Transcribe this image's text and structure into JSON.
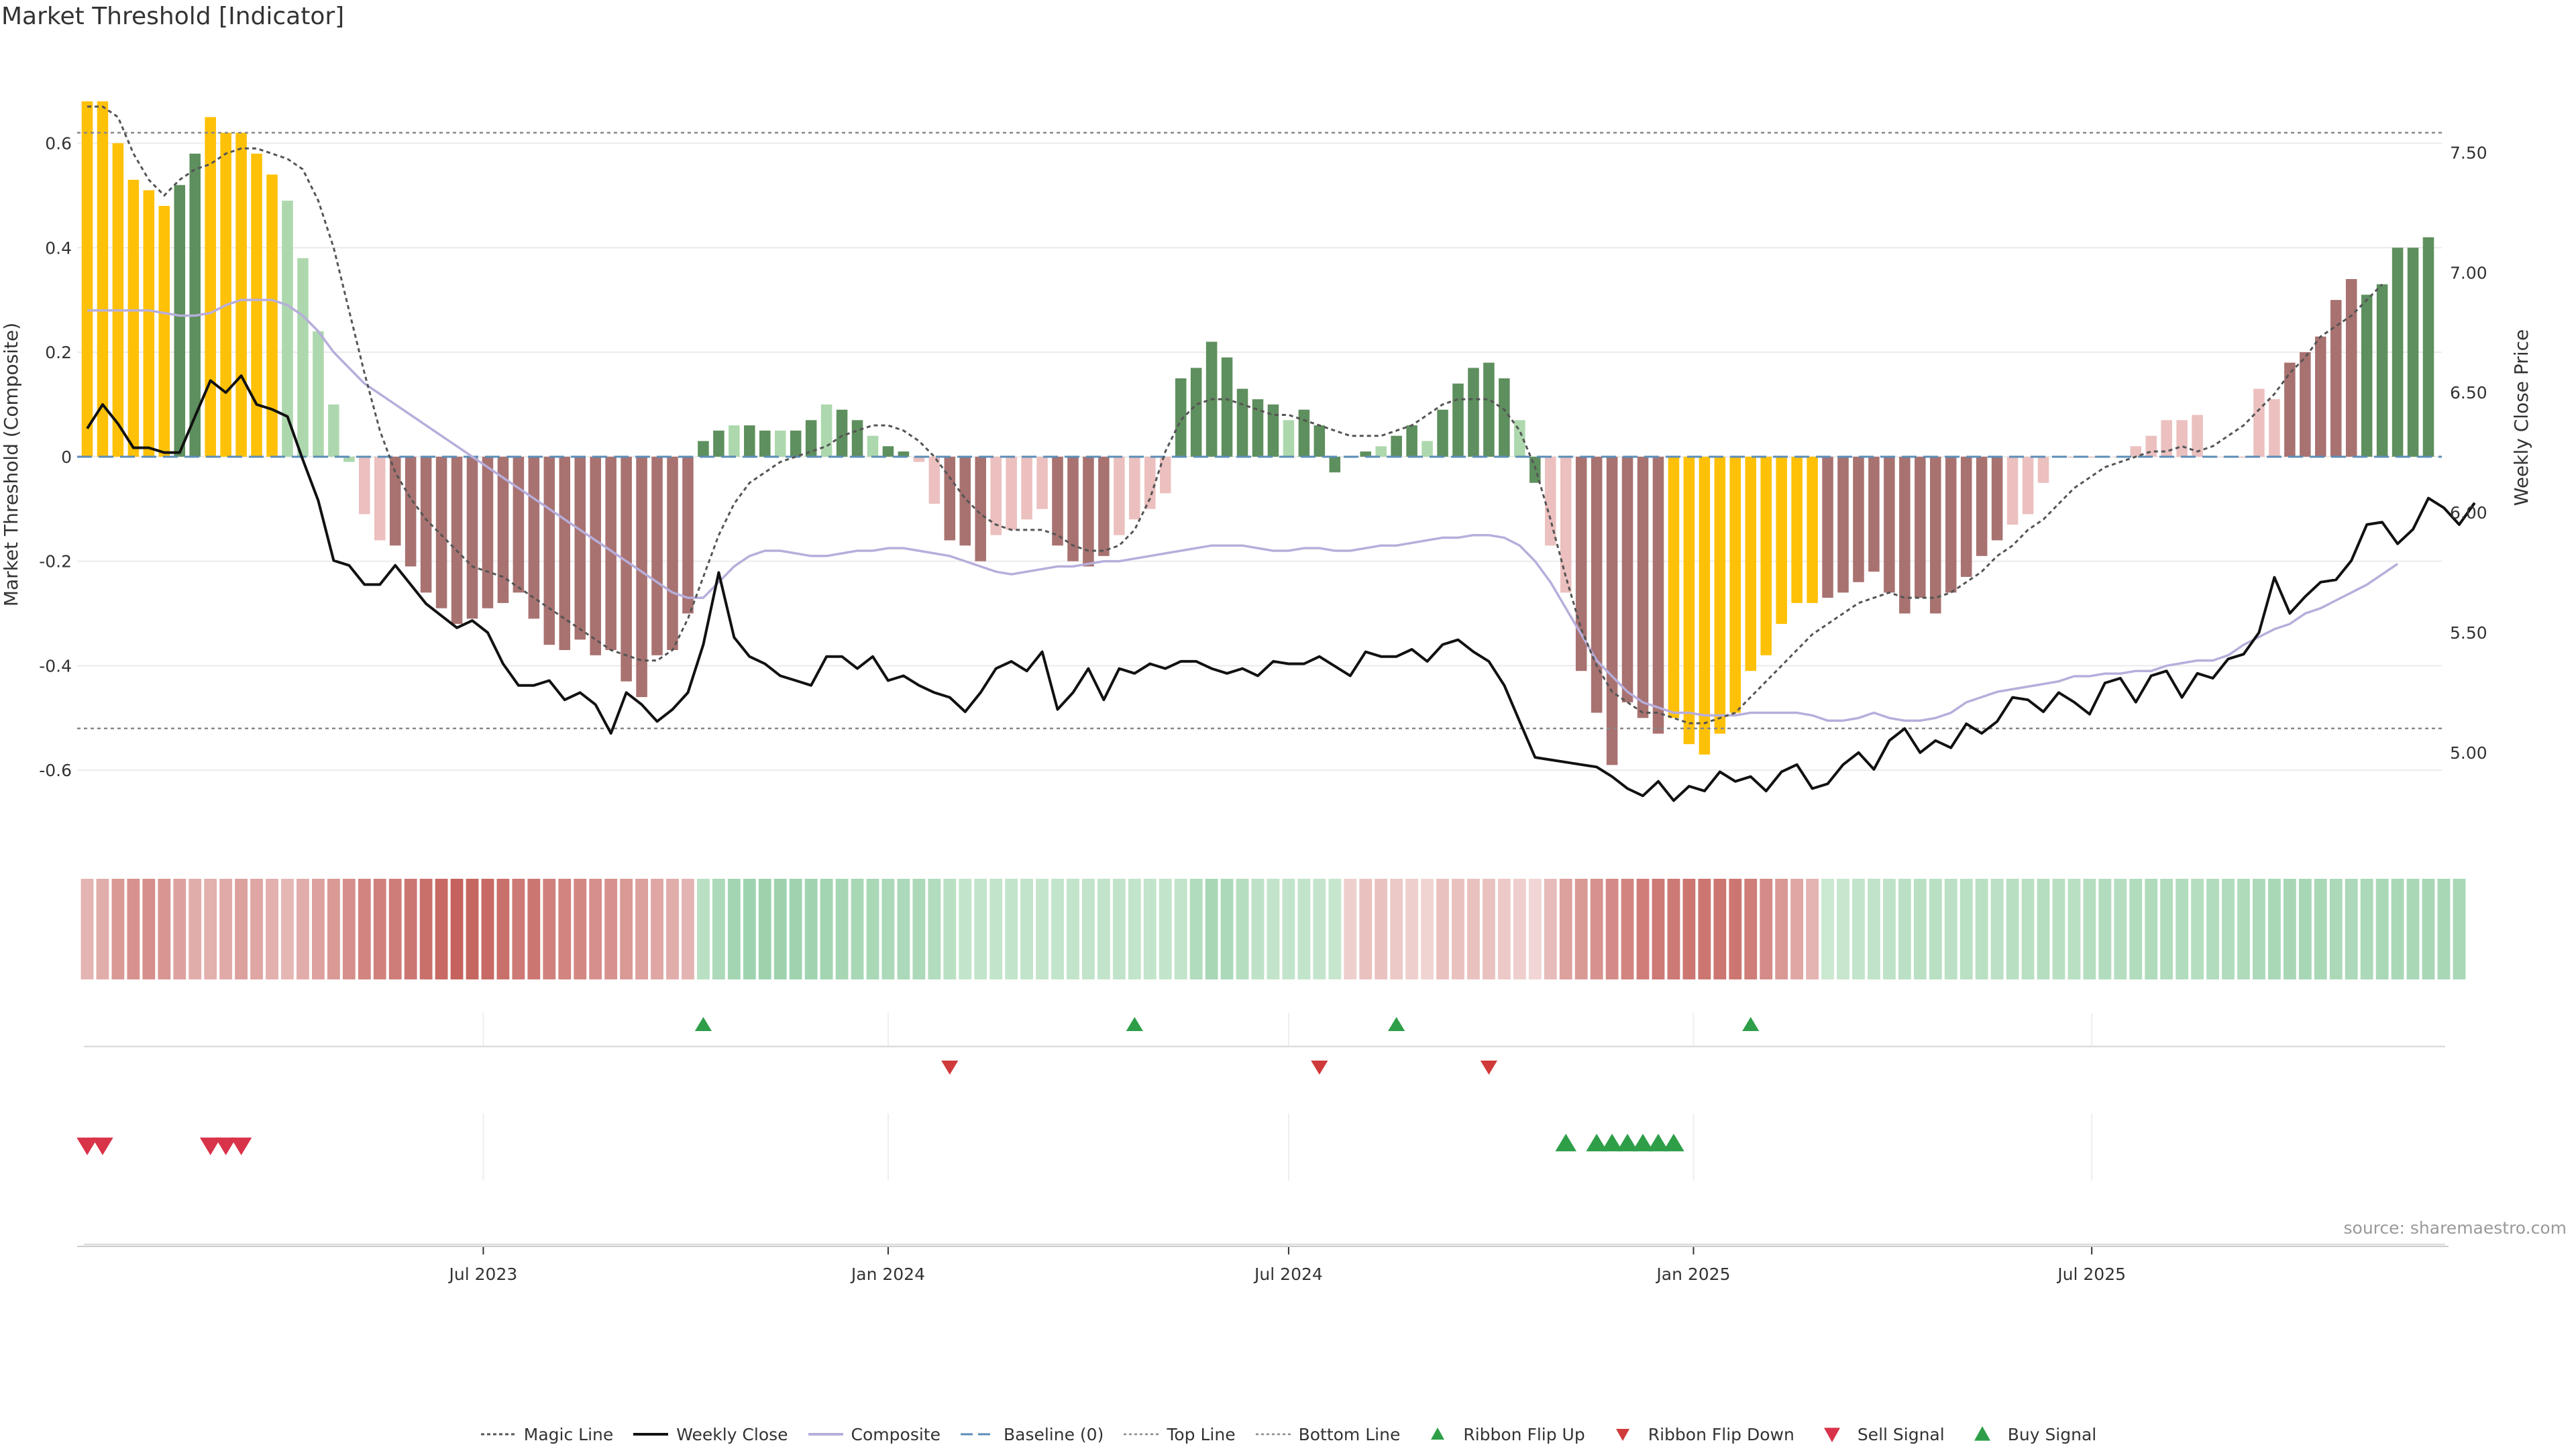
{
  "title": "Market Threshold [Indicator]",
  "source": "source: sharemaestro.com",
  "colors": {
    "extreme": "#FFC107",
    "pos_strong": "#5E8F5E",
    "pos_weak": "#ADD8AD",
    "neg_strong": "#A87270",
    "neg_weak": "#EBC0BE",
    "close": "#111111",
    "composite": "#B7AEDB",
    "magic": "#555555",
    "baseline": "#5B8DB8",
    "ribbon_up": "#2E9E48",
    "ribbon_down": "#D03A3A",
    "sell": "#D9334A",
    "buy": "#2E9E48"
  },
  "chart_data": {
    "type": "bar",
    "x_start": "2023-01-02",
    "x_step_days": 7,
    "x_ticks": [
      "Jul 2023",
      "Jan 2024",
      "Jul 2024",
      "Jan 2025",
      "Jul 2025"
    ],
    "x_tick_dates": [
      "2023-07-01",
      "2024-01-01",
      "2024-07-01",
      "2025-01-01",
      "2025-07-01"
    ],
    "ylabel": "Market Threshold (Composite)",
    "y2label": "Weekly Close Price",
    "ylim": [
      -0.75,
      0.72
    ],
    "y_ticks": [
      -0.6,
      -0.4,
      -0.2,
      0,
      0.2,
      0.4,
      0.6
    ],
    "y2lim": [
      4.6,
      7.8
    ],
    "y2_ticks": [
      5.0,
      5.5,
      6.0,
      6.5,
      7.0,
      7.5
    ],
    "top_line": 0.62,
    "bottom_line": -0.52,
    "bars": [
      0.68,
      0.68,
      0.6,
      0.53,
      0.51,
      0.48,
      0.52,
      0.58,
      0.65,
      0.62,
      0.62,
      0.58,
      0.54,
      0.49,
      0.38,
      0.24,
      0.1,
      -0.01,
      -0.11,
      -0.16,
      -0.17,
      -0.21,
      -0.26,
      -0.29,
      -0.32,
      -0.31,
      -0.29,
      -0.28,
      -0.26,
      -0.31,
      -0.36,
      -0.37,
      -0.35,
      -0.38,
      -0.37,
      -0.43,
      -0.46,
      -0.38,
      -0.37,
      -0.3,
      0.03,
      0.05,
      0.06,
      0.06,
      0.05,
      0.05,
      0.05,
      0.07,
      0.1,
      0.09,
      0.07,
      0.04,
      0.02,
      0.01,
      -0.01,
      -0.09,
      -0.16,
      -0.17,
      -0.2,
      -0.15,
      -0.14,
      -0.12,
      -0.1,
      -0.17,
      -0.2,
      -0.21,
      -0.19,
      -0.15,
      -0.12,
      -0.1,
      -0.07,
      0.15,
      0.17,
      0.22,
      0.19,
      0.13,
      0.11,
      0.1,
      0.07,
      0.09,
      0.06,
      -0.03,
      0.0,
      0.01,
      0.02,
      0.04,
      0.06,
      0.03,
      0.09,
      0.14,
      0.17,
      0.18,
      0.15,
      0.07,
      -0.05,
      -0.17,
      -0.26,
      -0.41,
      -0.49,
      -0.59,
      -0.47,
      -0.5,
      -0.53,
      -0.5,
      -0.55,
      -0.57,
      -0.53,
      -0.49,
      -0.41,
      -0.38,
      -0.32,
      -0.28,
      -0.28,
      -0.27,
      -0.26,
      -0.24,
      -0.22,
      -0.26,
      -0.3,
      -0.27,
      -0.3,
      -0.26,
      -0.23,
      -0.19,
      -0.16,
      -0.13,
      -0.11,
      -0.05,
      0.0,
      0.0,
      0.0,
      0.0,
      0.0,
      0.02,
      0.04,
      0.07,
      0.07,
      0.08,
      0.0,
      0.0,
      0.0,
      0.13,
      0.11,
      0.18,
      0.2,
      0.23,
      0.3,
      0.34,
      0.31,
      0.33,
      0.4,
      0.4,
      0.42
    ],
    "bar_color_codes": "EEEEEEAAEEEEEWWWWWwwvvvvvvvvvvvvvvvvvvvvAAAAAAAAAAAAAAwwvvvvvvvvvvvvvvvAAAAAAAAAAAAAAAAAAAAAAAAwwvvvvvvEEEEEEEEEEvvvvvvvvvvvvvvvvvvvvvvvvvvvvvvvvvvvAAAAAAAAAAAAAAAAAAAAAAAAAA",
    "composite": [
      0.28,
      0.28,
      0.28,
      0.28,
      0.28,
      0.275,
      0.27,
      0.27,
      0.275,
      0.29,
      0.3,
      0.3,
      0.3,
      0.29,
      0.27,
      0.24,
      0.2,
      0.17,
      0.14,
      0.12,
      0.1,
      0.08,
      0.06,
      0.04,
      0.02,
      0.0,
      -0.02,
      -0.04,
      -0.06,
      -0.08,
      -0.1,
      -0.12,
      -0.14,
      -0.16,
      -0.18,
      -0.2,
      -0.22,
      -0.24,
      -0.26,
      -0.27,
      -0.27,
      -0.24,
      -0.21,
      -0.19,
      -0.18,
      -0.18,
      -0.185,
      -0.19,
      -0.19,
      -0.185,
      -0.18,
      -0.18,
      -0.175,
      -0.175,
      -0.18,
      -0.185,
      -0.19,
      -0.2,
      -0.21,
      -0.22,
      -0.225,
      -0.22,
      -0.215,
      -0.21,
      -0.21,
      -0.205,
      -0.2,
      -0.2,
      -0.195,
      -0.19,
      -0.185,
      -0.18,
      -0.175,
      -0.17,
      -0.17,
      -0.17,
      -0.175,
      -0.18,
      -0.18,
      -0.175,
      -0.175,
      -0.18,
      -0.18,
      -0.175,
      -0.17,
      -0.17,
      -0.165,
      -0.16,
      -0.155,
      -0.155,
      -0.15,
      -0.15,
      -0.155,
      -0.17,
      -0.2,
      -0.24,
      -0.29,
      -0.34,
      -0.39,
      -0.42,
      -0.45,
      -0.47,
      -0.48,
      -0.49,
      -0.49,
      -0.495,
      -0.495,
      -0.495,
      -0.49,
      -0.49,
      -0.49,
      -0.49,
      -0.495,
      -0.505,
      -0.505,
      -0.5,
      -0.49,
      -0.5,
      -0.505,
      -0.505,
      -0.5,
      -0.49,
      -0.47,
      -0.46,
      -0.45,
      -0.445,
      -0.44,
      -0.435,
      -0.43,
      -0.42,
      -0.42,
      -0.415,
      -0.415,
      -0.41,
      -0.41,
      -0.4,
      -0.395,
      -0.39,
      -0.39,
      -0.38,
      -0.36,
      -0.345,
      -0.33,
      -0.32,
      -0.3,
      -0.29,
      -0.275,
      -0.26,
      -0.245,
      -0.225,
      -0.205
    ],
    "magic": [
      0.67,
      0.67,
      0.65,
      0.58,
      0.53,
      0.5,
      0.53,
      0.55,
      0.56,
      0.58,
      0.59,
      0.59,
      0.58,
      0.57,
      0.55,
      0.49,
      0.4,
      0.28,
      0.16,
      0.05,
      -0.03,
      -0.08,
      -0.12,
      -0.15,
      -0.18,
      -0.21,
      -0.22,
      -0.23,
      -0.25,
      -0.27,
      -0.29,
      -0.31,
      -0.33,
      -0.35,
      -0.37,
      -0.38,
      -0.39,
      -0.39,
      -0.37,
      -0.31,
      -0.23,
      -0.15,
      -0.09,
      -0.05,
      -0.03,
      -0.01,
      0.0,
      0.01,
      0.02,
      0.04,
      0.05,
      0.06,
      0.06,
      0.05,
      0.03,
      0.0,
      -0.04,
      -0.08,
      -0.11,
      -0.13,
      -0.14,
      -0.14,
      -0.14,
      -0.15,
      -0.17,
      -0.18,
      -0.18,
      -0.17,
      -0.14,
      -0.08,
      0.01,
      0.07,
      0.1,
      0.11,
      0.11,
      0.1,
      0.09,
      0.08,
      0.08,
      0.07,
      0.06,
      0.05,
      0.04,
      0.04,
      0.04,
      0.05,
      0.06,
      0.08,
      0.1,
      0.11,
      0.11,
      0.11,
      0.09,
      0.05,
      -0.02,
      -0.12,
      -0.23,
      -0.33,
      -0.4,
      -0.45,
      -0.47,
      -0.49,
      -0.49,
      -0.5,
      -0.51,
      -0.51,
      -0.5,
      -0.49,
      -0.46,
      -0.43,
      -0.4,
      -0.37,
      -0.34,
      -0.32,
      -0.3,
      -0.28,
      -0.27,
      -0.26,
      -0.27,
      -0.27,
      -0.27,
      -0.26,
      -0.24,
      -0.22,
      -0.19,
      -0.17,
      -0.14,
      -0.12,
      -0.09,
      -0.06,
      -0.04,
      -0.02,
      -0.01,
      0.0,
      0.01,
      0.01,
      0.02,
      0.01,
      0.02,
      0.04,
      0.06,
      0.09,
      0.12,
      0.16,
      0.19,
      0.23,
      0.25,
      0.27,
      0.3,
      0.33
    ],
    "close": [
      6.35,
      6.45,
      6.37,
      6.27,
      6.27,
      6.25,
      6.25,
      6.4,
      6.55,
      6.5,
      6.57,
      6.45,
      6.43,
      6.4,
      6.22,
      6.05,
      5.8,
      5.78,
      5.7,
      5.7,
      5.78,
      5.7,
      5.62,
      5.57,
      5.52,
      5.55,
      5.5,
      5.37,
      5.28,
      5.28,
      5.3,
      5.22,
      5.25,
      5.2,
      5.08,
      5.25,
      5.2,
      5.13,
      5.18,
      5.25,
      5.45,
      5.75,
      5.48,
      5.4,
      5.37,
      5.32,
      5.3,
      5.28,
      5.4,
      5.4,
      5.35,
      5.4,
      5.3,
      5.32,
      5.28,
      5.25,
      5.23,
      5.17,
      5.25,
      5.35,
      5.38,
      5.34,
      5.42,
      5.18,
      5.25,
      5.35,
      5.22,
      5.35,
      5.33,
      5.37,
      5.35,
      5.38,
      5.38,
      5.35,
      5.33,
      5.35,
      5.32,
      5.38,
      5.37,
      5.37,
      5.4,
      5.36,
      5.32,
      5.42,
      5.4,
      5.4,
      5.43,
      5.38,
      5.45,
      5.47,
      5.42,
      5.38,
      5.28,
      5.13,
      4.98,
      4.97,
      4.96,
      4.95,
      4.94,
      4.9,
      4.85,
      4.82,
      4.88,
      4.8,
      4.86,
      4.84,
      4.92,
      4.88,
      4.9,
      4.84,
      4.92,
      4.95,
      4.85,
      4.87,
      4.95,
      5.0,
      4.93,
      5.05,
      5.1,
      5.0,
      5.05,
      5.02,
      5.12,
      5.08,
      5.13,
      5.23,
      5.22,
      5.17,
      5.25,
      5.21,
      5.16,
      5.29,
      5.31,
      5.21,
      5.32,
      5.34,
      5.23,
      5.33,
      5.31,
      5.39,
      5.41,
      5.5,
      5.73,
      5.58,
      5.65,
      5.71,
      5.72,
      5.8,
      5.95,
      5.96,
      5.87,
      5.93,
      6.06,
      6.02,
      5.95,
      6.04
    ],
    "ribbon": [
      0.35,
      0.4,
      0.55,
      0.6,
      0.62,
      0.58,
      0.48,
      0.4,
      0.38,
      0.42,
      0.5,
      0.45,
      0.38,
      0.33,
      0.4,
      0.48,
      0.55,
      0.62,
      0.7,
      0.72,
      0.75,
      0.8,
      0.85,
      0.9,
      0.95,
      0.92,
      0.9,
      0.85,
      0.78,
      0.8,
      0.72,
      0.7,
      0.68,
      0.62,
      0.6,
      0.55,
      0.5,
      0.45,
      0.4,
      0.35,
      -0.4,
      -0.55,
      -0.65,
      -0.7,
      -0.72,
      -0.72,
      -0.7,
      -0.68,
      -0.65,
      -0.62,
      -0.6,
      -0.58,
      -0.55,
      -0.55,
      -0.55,
      -0.5,
      -0.4,
      -0.3,
      -0.3,
      -0.3,
      -0.3,
      -0.3,
      -0.28,
      -0.3,
      -0.3,
      -0.3,
      -0.3,
      -0.32,
      -0.3,
      -0.3,
      -0.3,
      -0.3,
      -0.5,
      -0.6,
      -0.55,
      -0.45,
      -0.35,
      -0.3,
      -0.3,
      -0.3,
      -0.28,
      -0.25,
      0.15,
      0.25,
      0.25,
      0.2,
      0.15,
      0.12,
      0.25,
      0.25,
      0.25,
      0.25,
      0.2,
      0.15,
      0.1,
      0.3,
      0.5,
      0.55,
      0.6,
      0.65,
      0.7,
      0.75,
      0.78,
      0.78,
      0.8,
      0.8,
      0.8,
      0.8,
      0.75,
      0.65,
      0.55,
      0.45,
      0.35,
      -0.2,
      -0.25,
      -0.3,
      -0.32,
      -0.35,
      -0.38,
      -0.4,
      -0.4,
      -0.38,
      -0.4,
      -0.4,
      -0.38,
      -0.42,
      -0.4,
      -0.45,
      -0.42,
      -0.4,
      -0.45,
      -0.48,
      -0.45,
      -0.5,
      -0.52,
      -0.5,
      -0.48,
      -0.45,
      -0.48,
      -0.5,
      -0.52,
      -0.55,
      -0.58,
      -0.6,
      -0.6,
      -0.58,
      -0.56,
      -0.55,
      -0.55,
      -0.58,
      -0.58,
      -0.58,
      -0.6,
      -0.6,
      -0.58
    ],
    "ribbon_flip_up": [
      40,
      68,
      85,
      108
    ],
    "ribbon_flip_down": [
      56,
      80,
      91
    ],
    "sell_signal": [
      0,
      1,
      8,
      9,
      10
    ],
    "buy_signal": [
      96,
      98,
      99,
      100,
      101,
      102,
      103
    ],
    "legend": [
      {
        "key": "magic",
        "label": "Magic Line"
      },
      {
        "key": "close",
        "label": "Weekly Close"
      },
      {
        "key": "composite",
        "label": "Composite"
      },
      {
        "key": "baseline",
        "label": "Baseline (0)"
      },
      {
        "key": "top",
        "label": "Top Line"
      },
      {
        "key": "bottom",
        "label": "Bottom Line"
      },
      {
        "key": "ribbon_up",
        "label": "Ribbon Flip Up"
      },
      {
        "key": "ribbon_down",
        "label": "Ribbon Flip Down"
      },
      {
        "key": "sell",
        "label": "Sell Signal"
      },
      {
        "key": "buy",
        "label": "Buy Signal"
      }
    ]
  }
}
